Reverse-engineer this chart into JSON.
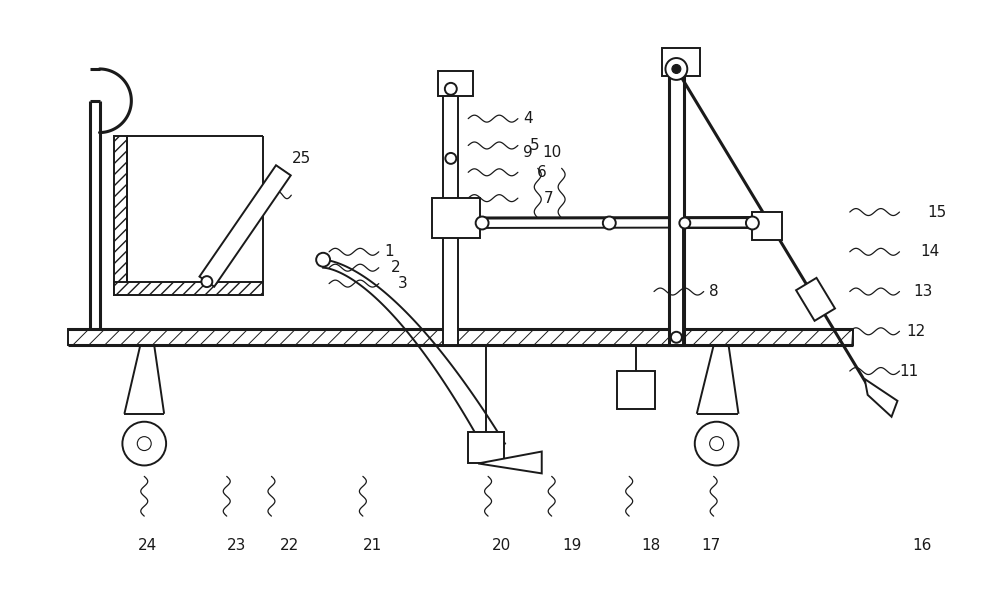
{
  "bg_color": "#ffffff",
  "line_color": "#1a1a1a",
  "lw": 1.4,
  "lw2": 2.2,
  "fig_w": 10.0,
  "fig_h": 5.99
}
